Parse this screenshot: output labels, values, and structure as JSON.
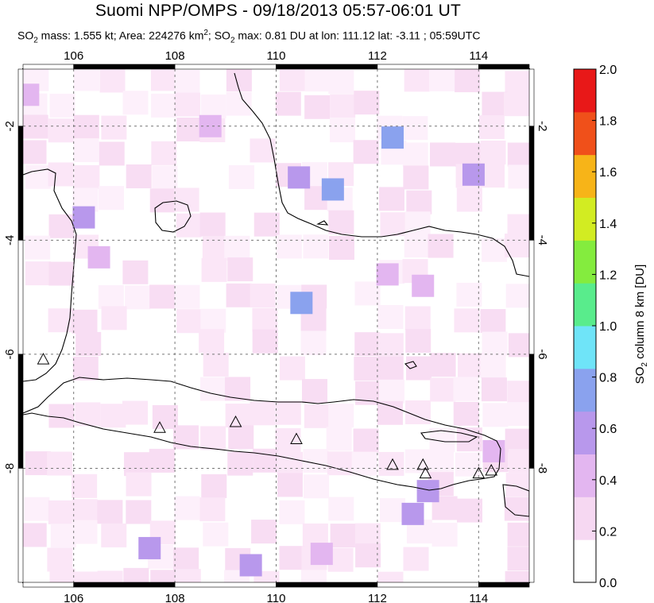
{
  "header": {
    "title": "Suomi NPP/OMPS - 09/18/2013 05:57-06:01 UT",
    "subtitle": {
      "mass_label": "SO",
      "mass_sub": "2",
      "mass_text": " mass: 1.555 kt; Area: 224276 km",
      "area_sup": "2",
      "max_text": "; SO",
      "max_sub": "2",
      "rest": " max: 0.81 DU at lon: 111.12 lat: -3.11 ; 05:59UTC"
    }
  },
  "map": {
    "lon_range": [
      105,
      115
    ],
    "lat_range": [
      -10,
      -1
    ],
    "x_ticks": [
      "106",
      "108",
      "110",
      "112",
      "114"
    ],
    "y_ticks": [
      "-2",
      "-4",
      "-6",
      "-8"
    ],
    "grid": "dashed",
    "volcano_marker": "triangle-icon",
    "volcanoes": [
      {
        "lon": 105.4,
        "lat": -6.1
      },
      {
        "lon": 107.7,
        "lat": -7.3
      },
      {
        "lon": 109.2,
        "lat": -7.2
      },
      {
        "lon": 110.4,
        "lat": -7.5
      },
      {
        "lon": 112.3,
        "lat": -7.95
      },
      {
        "lon": 112.9,
        "lat": -7.95
      },
      {
        "lon": 112.95,
        "lat": -8.1
      },
      {
        "lon": 114.0,
        "lat": -8.1
      },
      {
        "lon": 114.25,
        "lat": -8.05
      }
    ]
  },
  "colorbar": {
    "label": "SO2 column 8 km [DU]",
    "label_main": "SO",
    "label_sub": "2",
    "label_rest": " column 8 km [DU]",
    "ticks": [
      "0.0",
      "0.2",
      "0.4",
      "0.6",
      "0.8",
      "1.0",
      "1.2",
      "1.4",
      "1.6",
      "1.8",
      "2.0"
    ],
    "range": [
      0,
      2
    ],
    "colors": [
      "#ffffff",
      "#f6d8f2",
      "#e3b6f0",
      "#b898ec",
      "#8aa2ee",
      "#6fe4f8",
      "#59ec8c",
      "#84ec3e",
      "#d2ec22",
      "#f7b418",
      "#f0501a",
      "#e81818"
    ]
  },
  "so2_cells": [
    {
      "lon": 112.3,
      "lat": -2.2,
      "v": 0.65
    },
    {
      "lon": 113.9,
      "lat": -2.85,
      "v": 0.62
    },
    {
      "lon": 111.12,
      "lat": -3.11,
      "v": 0.81
    },
    {
      "lon": 110.5,
      "lat": -5.1,
      "v": 0.7
    },
    {
      "lon": 110.45,
      "lat": -2.9,
      "v": 0.5
    },
    {
      "lon": 105.1,
      "lat": -1.45,
      "v": 0.45
    },
    {
      "lon": 106.2,
      "lat": -3.6,
      "v": 0.5
    },
    {
      "lon": 106.5,
      "lat": -4.3,
      "v": 0.45
    },
    {
      "lon": 107.5,
      "lat": -9.4,
      "v": 0.5
    },
    {
      "lon": 109.5,
      "lat": -9.7,
      "v": 0.55
    },
    {
      "lon": 112.7,
      "lat": -8.8,
      "v": 0.62
    },
    {
      "lon": 113.0,
      "lat": -8.4,
      "v": 0.5
    },
    {
      "lon": 108.7,
      "lat": -2.0,
      "v": 0.45
    },
    {
      "lon": 112.2,
      "lat": -4.6,
      "v": 0.4
    },
    {
      "lon": 112.9,
      "lat": -4.8,
      "v": 0.45
    },
    {
      "lon": 114.3,
      "lat": -7.7,
      "v": 0.35
    },
    {
      "lon": 110.9,
      "lat": -9.5,
      "v": 0.4
    }
  ]
}
